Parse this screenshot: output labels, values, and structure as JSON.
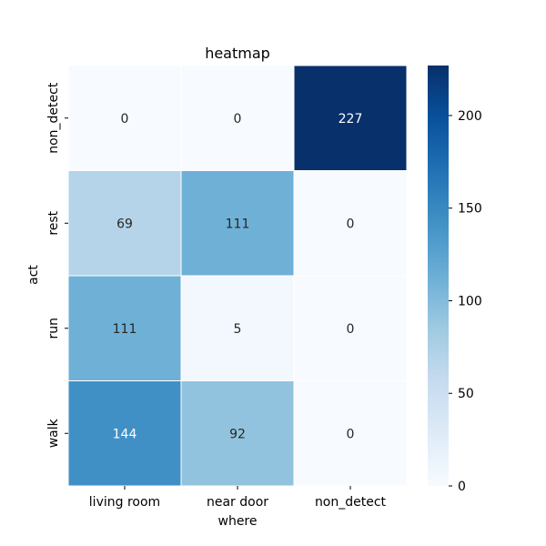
{
  "chart_data": {
    "type": "heatmap",
    "title": "heatmap",
    "xlabel": "where",
    "ylabel": "act",
    "x_categories": [
      "living room",
      "near door",
      "non_detect"
    ],
    "y_categories": [
      "non_detect",
      "rest",
      "run",
      "walk"
    ],
    "values": [
      [
        0,
        0,
        227
      ],
      [
        69,
        111,
        0
      ],
      [
        111,
        5,
        0
      ],
      [
        144,
        92,
        0
      ]
    ],
    "colormap": "Blues",
    "color_range": [
      0,
      227
    ],
    "colorbar_ticks": [
      0,
      50,
      100,
      150,
      200
    ]
  }
}
